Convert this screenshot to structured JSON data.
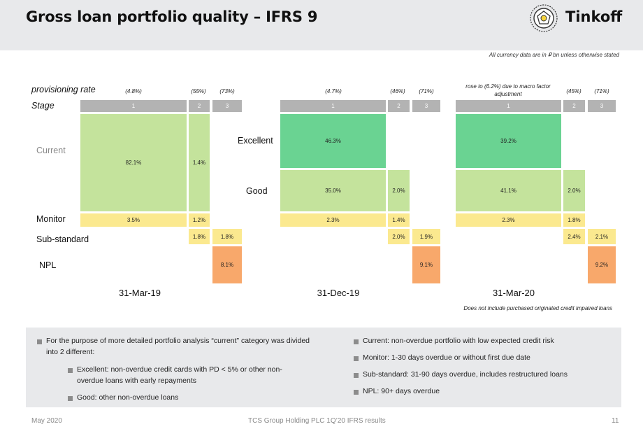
{
  "header": {
    "title": "Gross loan portfolio quality – IFRS 9",
    "logo_text": "Tinkoff",
    "currency_note": "All currency data are in ₽ bn unless otherwise stated"
  },
  "row_labels": {
    "provisioning_rate": "provisioning rate",
    "stage": "Stage",
    "current": "Current",
    "excellent": "Excellent",
    "good": "Good",
    "monitor": "Monitor",
    "substandard": "Sub-standard",
    "npl": "NPL"
  },
  "panels": [
    {
      "date": "31-Mar-19",
      "prov": [
        "(4.8%)",
        "(55%)",
        "(73%)"
      ],
      "stages": [
        "1",
        "2",
        "3"
      ],
      "current": [
        "82.1%",
        "1.4%"
      ],
      "monitor": [
        "3.5%",
        "1.2%"
      ],
      "substandard": [
        "1.8%",
        "1.8%"
      ],
      "npl": "8.1%"
    },
    {
      "date": "31-Dec-19",
      "prov": [
        "(4.7%)",
        "(46%)",
        "(71%)"
      ],
      "stages": [
        "1",
        "2",
        "3"
      ],
      "excellent": "46.3%",
      "good": [
        "35.0%",
        "2.0%"
      ],
      "monitor": [
        "2.3%",
        "1.4%"
      ],
      "substandard": [
        "2.0%",
        "1.9%"
      ],
      "npl": "9.1%"
    },
    {
      "date": "31-Mar-20",
      "prov": [
        "rose to (6.2%) due to macro factor adjustment",
        "(45%)",
        "(71%)"
      ],
      "stages": [
        "1",
        "2",
        "3"
      ],
      "excellent": "39.2%",
      "good": [
        "41.1%",
        "2.0%"
      ],
      "monitor": [
        "2.3%",
        "1.8%"
      ],
      "substandard": [
        "2.4%",
        "2.1%"
      ],
      "npl": "9.2%"
    }
  ],
  "poci_note": "Does not include purchased originated credit impaired loans",
  "notes": {
    "left_main": "For the purpose of more detailed portfolio analysis “current” category was divided into 2 different:",
    "left_sub1": "Excellent: non-overdue credit cards with PD < 5% or other non-overdue loans with early repayments",
    "left_sub2": "Good: other non-overdue loans",
    "right": [
      "Current: non-overdue portfolio with low expected credit risk",
      "Monitor: 1-30 days overdue or without first due date",
      "Sub-standard: 31-90 days overdue, includes restructured loans",
      "NPL: 90+ days overdue"
    ]
  },
  "footer": {
    "date": "May 2020",
    "company": "TCS Group Holding PLC 1Q’20 IFRS results",
    "page": "11"
  },
  "colors": {
    "current": "#c4e39c",
    "excellent": "#6ad392",
    "monitor": "#fbe98f",
    "npl": "#f8a86b",
    "stage_header": "#b3b3b3",
    "band": "#e8e9eb"
  }
}
